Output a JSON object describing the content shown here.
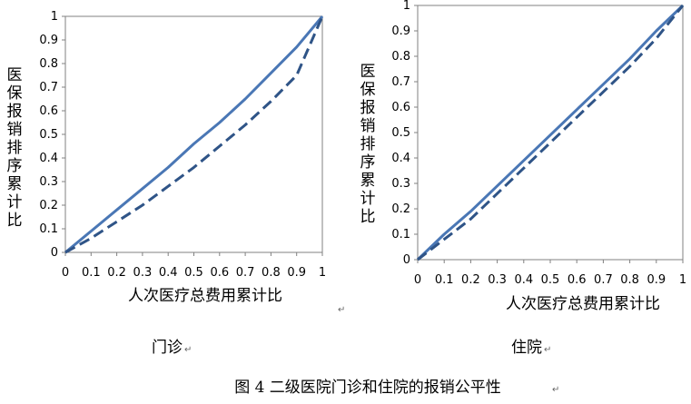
{
  "figure_caption": "图 4    二级医院门诊和住院的报销公平性",
  "chart_data": [
    {
      "type": "line",
      "subtitle": "门诊",
      "xlabel": "人次医疗总费用累计比",
      "ylabel": "医保报销排序累计比",
      "xlim": [
        0,
        1
      ],
      "ylim": [
        0,
        1
      ],
      "x_ticks": [
        "0",
        "0.1",
        "0.2",
        "0.3",
        "0.4",
        "0.5",
        "0.6",
        "0.7",
        "0.8",
        "0.9",
        "1"
      ],
      "y_ticks": [
        "0",
        "0.1",
        "0.2",
        "0.3",
        "0.4",
        "0.5",
        "0.6",
        "0.7",
        "0.8",
        "0.9",
        "1"
      ],
      "grid": false,
      "series": [
        {
          "style": "solid",
          "color": "#4A77B5",
          "points": [
            [
              0,
              0
            ],
            [
              0.1,
              0.09
            ],
            [
              0.2,
              0.18
            ],
            [
              0.3,
              0.27
            ],
            [
              0.4,
              0.36
            ],
            [
              0.5,
              0.46
            ],
            [
              0.6,
              0.55
            ],
            [
              0.7,
              0.65
            ],
            [
              0.8,
              0.76
            ],
            [
              0.9,
              0.87
            ],
            [
              1,
              1
            ]
          ]
        },
        {
          "style": "dashed",
          "color": "#2F5487",
          "points": [
            [
              0,
              0
            ],
            [
              0.1,
              0.06
            ],
            [
              0.2,
              0.13
            ],
            [
              0.3,
              0.2
            ],
            [
              0.4,
              0.28
            ],
            [
              0.5,
              0.36
            ],
            [
              0.6,
              0.45
            ],
            [
              0.7,
              0.54
            ],
            [
              0.8,
              0.64
            ],
            [
              0.9,
              0.75
            ],
            [
              1,
              1
            ]
          ]
        }
      ]
    },
    {
      "type": "line",
      "subtitle": "住院",
      "xlabel": "人次医疗总费用累计比",
      "ylabel": "医保报销排序累计比",
      "xlim": [
        0,
        1
      ],
      "ylim": [
        0,
        1
      ],
      "x_ticks": [
        "0",
        "0.1",
        "0.2",
        "0.3",
        "0.4",
        "0.5",
        "0.6",
        "0.7",
        "0.8",
        "0.9",
        "1"
      ],
      "y_ticks": [
        "0",
        "0.1",
        "0.2",
        "0.3",
        "0.4",
        "0.5",
        "0.6",
        "0.7",
        "0.8",
        "0.9",
        "1"
      ],
      "grid": false,
      "series": [
        {
          "style": "solid",
          "color": "#4A77B5",
          "points": [
            [
              0,
              0
            ],
            [
              0.1,
              0.1
            ],
            [
              0.2,
              0.19
            ],
            [
              0.3,
              0.29
            ],
            [
              0.4,
              0.39
            ],
            [
              0.5,
              0.49
            ],
            [
              0.6,
              0.59
            ],
            [
              0.7,
              0.69
            ],
            [
              0.8,
              0.79
            ],
            [
              0.9,
              0.9
            ],
            [
              1,
              1
            ]
          ]
        },
        {
          "style": "dashed",
          "color": "#2F5487",
          "points": [
            [
              0,
              0
            ],
            [
              0.1,
              0.08
            ],
            [
              0.2,
              0.16
            ],
            [
              0.3,
              0.26
            ],
            [
              0.4,
              0.36
            ],
            [
              0.5,
              0.46
            ],
            [
              0.6,
              0.56
            ],
            [
              0.7,
              0.66
            ],
            [
              0.8,
              0.76
            ],
            [
              0.9,
              0.87
            ],
            [
              1,
              1
            ]
          ]
        }
      ]
    }
  ],
  "return_marks": [
    "↵",
    "↵",
    "↵",
    "↵"
  ]
}
